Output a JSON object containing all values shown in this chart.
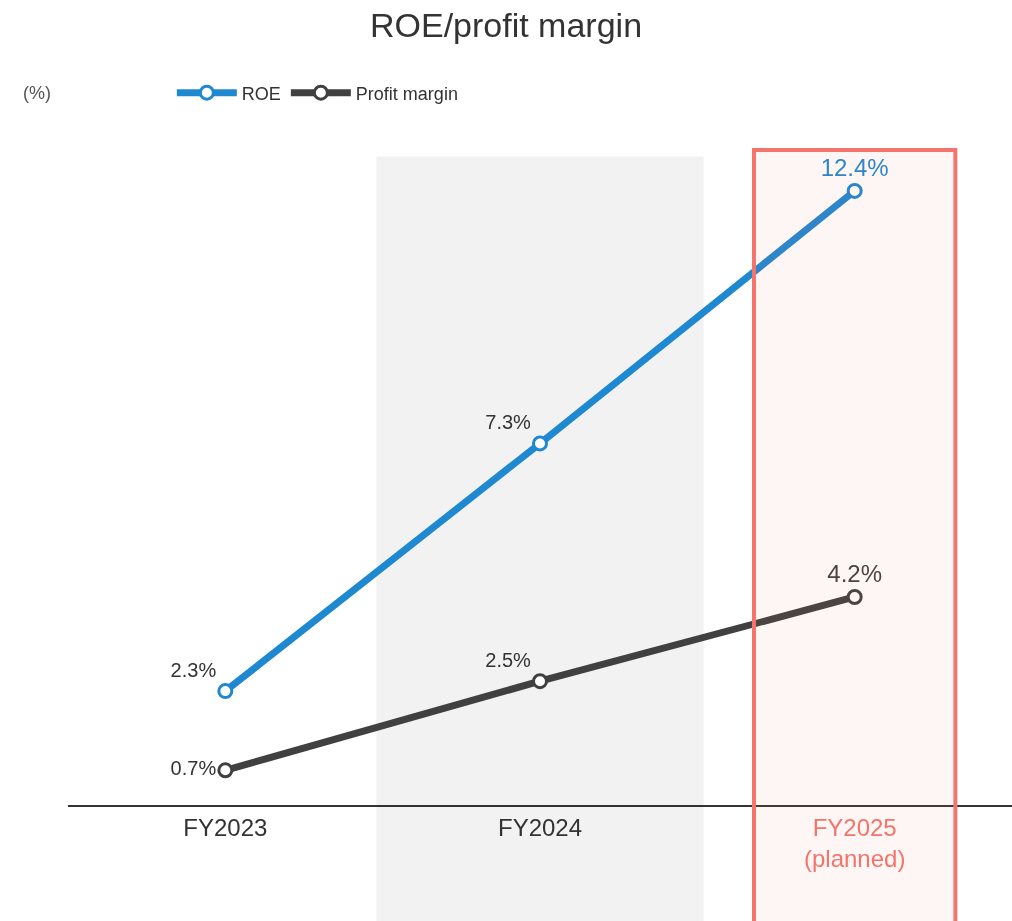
{
  "chart_data": {
    "type": "line",
    "title": "ROE/profit margin",
    "annotations": [
      "(%)"
    ],
    "categories": [
      "FY2023",
      "FY2024",
      "FY2025 (planned)"
    ],
    "series": [
      {
        "name": "ROE",
        "color": "#1e88d0",
        "values": [
          2.3,
          7.3,
          12.4
        ],
        "value_labels": [
          "2.3%",
          "7.3%",
          "12.4%"
        ]
      },
      {
        "name": "Profit margin",
        "color": "#404040",
        "values": [
          0.7,
          2.5,
          4.2
        ],
        "value_labels": [
          "0.7%",
          "2.5%",
          "4.2%"
        ]
      }
    ],
    "tick_labels": "x",
    "grid": false,
    "legend": "top left",
    "marker": "circle",
    "line_style": "solid",
    "bands": [
      {
        "axis": "x",
        "from": "FY2024",
        "to": "FY2024",
        "color": "#f2f2f2"
      },
      {
        "axis": "x",
        "from": "FY2025 (planned)",
        "to": "FY2025 (planned)",
        "color": "#f4756b"
      }
    ]
  }
}
